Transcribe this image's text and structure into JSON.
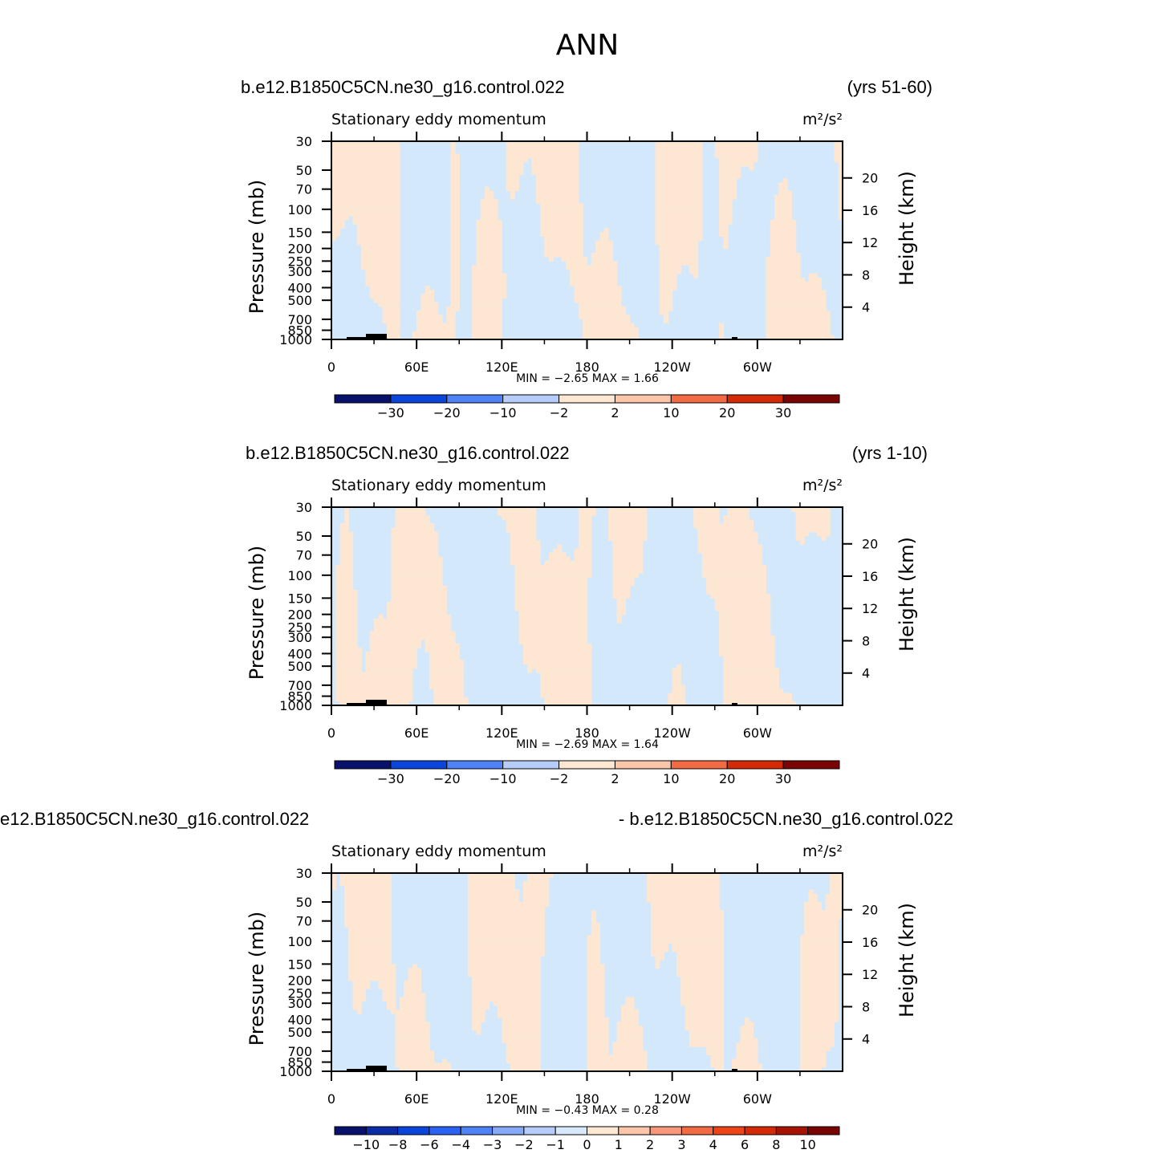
{
  "page_title": "ANN",
  "panels": [
    {
      "left_title": "b.e12.B1850C5CN.ne30_g16.control.022",
      "right_title": "(yrs 51-60)",
      "variable_label": "Stationary eddy momentum",
      "units_label": "m²/s²",
      "min_max_text": "MIN =  −2.65   MAX =    1.66",
      "colorbar_labels": [
        "−30",
        "−20",
        "−10",
        "−2",
        "2",
        "10",
        "20",
        "30"
      ]
    },
    {
      "left_title": "b.e12.B1850C5CN.ne30_g16.control.022",
      "right_title": "(yrs 1-10)",
      "variable_label": "Stationary eddy momentum",
      "units_label": "m²/s²",
      "min_max_text": "MIN =  −2.69   MAX =    1.64",
      "colorbar_labels": [
        "−30",
        "−20",
        "−10",
        "−2",
        "2",
        "10",
        "20",
        "30"
      ]
    },
    {
      "left_title": "e12.B1850C5CN.ne30_g16.control.022",
      "right_title": "- b.e12.B1850C5CN.ne30_g16.control.022",
      "variable_label": "Stationary eddy momentum",
      "units_label": "m²/s²",
      "min_max_text": "MIN =  −0.43   MAX =    0.28",
      "colorbar_labels": [
        "−10",
        "−8",
        "−6",
        "−4",
        "−3",
        "−2",
        "−1",
        "0",
        "1",
        "2",
        "3",
        "4",
        "6",
        "8",
        "10"
      ]
    }
  ],
  "axes": {
    "y_left_label": "Pressure  (mb)",
    "y_right_label": "Height  (km)",
    "y_left_ticks": [
      "30",
      "50",
      "70",
      "100",
      "150",
      "200",
      "250",
      "300",
      "400",
      "500",
      "700",
      "850",
      "1000"
    ],
    "y_right_ticks": [
      "20",
      "16",
      "12",
      "8",
      "4"
    ],
    "x_ticks": [
      "0",
      "60E",
      "120E",
      "180",
      "120W",
      "60W"
    ]
  },
  "colors": {
    "background": "#ffffff",
    "positive_fill": "#fde7d3",
    "negative_fill": "#d3e8fb",
    "axis": "#000000",
    "colorbar": [
      "#08116b",
      "#0a2da6",
      "#0c45dc",
      "#2a63f4",
      "#4f81f7",
      "#86a9f8",
      "#b6cdf9",
      "#d8e9fc",
      "#fde7d3",
      "#fbc6a9",
      "#f7987a",
      "#f26b45",
      "#ee4418",
      "#d52a07",
      "#a81404",
      "#7a0303"
    ]
  },
  "chart_data": [
    {
      "type": "heatmap",
      "title": "Stationary eddy momentum",
      "units": "m²/s²",
      "xlabel": "",
      "ylabel": "Pressure  (mb)",
      "y2label": "Height  (km)",
      "xlim": [
        0,
        360
      ],
      "ylim": [
        1000,
        30
      ],
      "y_scale": "log",
      "min": -2.65,
      "max": 1.66,
      "contour_levels": [
        -30,
        -20,
        -10,
        -2,
        2,
        10,
        20,
        30
      ],
      "grid": false
    },
    {
      "type": "heatmap",
      "title": "Stationary eddy momentum",
      "units": "m²/s²",
      "xlabel": "",
      "ylabel": "Pressure  (mb)",
      "y2label": "Height  (km)",
      "xlim": [
        0,
        360
      ],
      "ylim": [
        1000,
        30
      ],
      "y_scale": "log",
      "min": -2.69,
      "max": 1.64,
      "contour_levels": [
        -30,
        -20,
        -10,
        -2,
        2,
        10,
        20,
        30
      ],
      "grid": false
    },
    {
      "type": "heatmap",
      "title": "Stationary eddy momentum",
      "units": "m²/s²",
      "xlabel": "",
      "ylabel": "Pressure  (mb)",
      "y2label": "Height  (km)",
      "xlim": [
        0,
        360
      ],
      "ylim": [
        1000,
        30
      ],
      "y_scale": "log",
      "min": -0.43,
      "max": 0.28,
      "contour_levels": [
        -10,
        -8,
        -6,
        -4,
        -3,
        -2,
        -1,
        0,
        1,
        2,
        3,
        4,
        6,
        8,
        10
      ],
      "grid": false
    }
  ]
}
